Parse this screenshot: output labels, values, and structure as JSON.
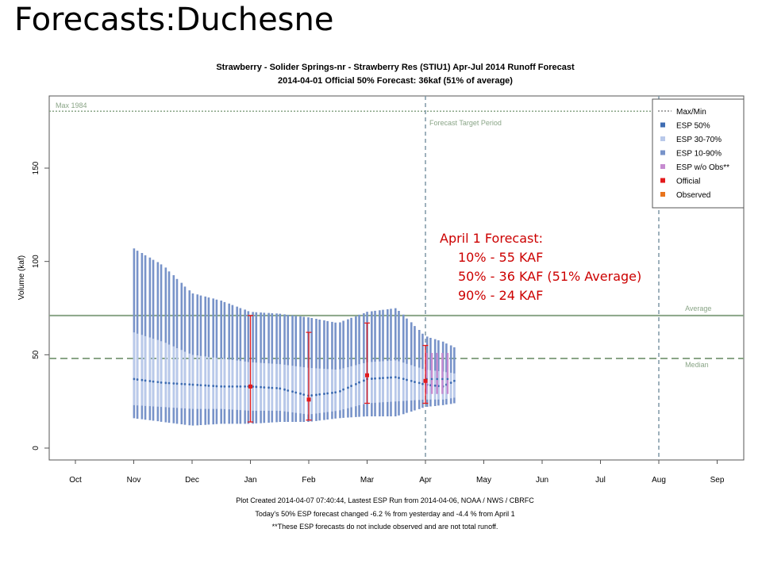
{
  "slide": {
    "title": "Forecasts:Duchesne"
  },
  "colors": {
    "esp50": "#3f6db3",
    "esp30_70": "#b9c9ea",
    "esp10_90": "#7893c9",
    "esp_wo_obs": "#c68bd0",
    "official": "#e31a1c",
    "observed": "#e8741c",
    "guide": "#8aa587",
    "target": "#7f97a5"
  },
  "chart_data": {
    "type": "bar",
    "title": "Strawberry - Solider Springs-nr - Strawberry Res (STIU1) Apr-Jul 2014 Runoff Forecast",
    "subtitle": "2014-04-01 Official 50% Forecast: 36kaf (51% of average)",
    "ylabel": "Volume (kaf)",
    "ylim": [
      0,
      190
    ],
    "y_ticks": [
      "0",
      "50",
      "100",
      "150"
    ],
    "x_ticks": [
      "Oct",
      "Nov",
      "Dec",
      "Jan",
      "Feb",
      "Mar",
      "Apr",
      "May",
      "Jun",
      "Jul",
      "Aug",
      "Sep"
    ],
    "legend": {
      "placement": "top-right",
      "items": [
        {
          "label": "Max/Min",
          "style": "dotted"
        },
        {
          "label": "ESP 50%",
          "style": "esp50"
        },
        {
          "label": "ESP 30-70%",
          "style": "esp30_70"
        },
        {
          "label": "ESP 10-90%",
          "style": "esp10_90"
        },
        {
          "label": "ESP w/o Obs**",
          "style": "esp_wo_obs"
        },
        {
          "label": "Official",
          "style": "official"
        },
        {
          "label": "Observed",
          "style": "observed"
        }
      ]
    },
    "reference_lines": [
      {
        "label": "Max 1984",
        "value": 180.5,
        "style": "dotted"
      },
      {
        "label": "Average",
        "value": 71,
        "style": "solid"
      },
      {
        "label": "Median",
        "value": 48,
        "style": "dashed"
      }
    ],
    "forecast_target_period": {
      "label": "Forecast Target Period",
      "start_month": "Apr",
      "end_month": "Aug"
    },
    "esp_anchor_months": [
      1,
      1.5,
      2,
      2.5,
      3,
      3.5,
      4,
      4.5,
      5,
      5.5,
      6,
      6.3,
      6.5
    ],
    "esp_p90_anchors": [
      107,
      98,
      83,
      79,
      73,
      72,
      70,
      67,
      73,
      75,
      60,
      57,
      54
    ],
    "esp_p70_anchors": [
      62,
      57,
      50,
      48,
      46,
      45,
      43,
      42,
      46,
      47,
      42,
      41,
      40
    ],
    "esp_p50_anchors": [
      37,
      35,
      34,
      33,
      33,
      32,
      28,
      30,
      37,
      38,
      34,
      33,
      36
    ],
    "esp_p30_anchors": [
      23,
      22,
      21,
      21,
      20,
      20,
      18,
      20,
      24,
      25,
      26,
      26,
      27
    ],
    "esp_p10_anchors": [
      16,
      14,
      12,
      13,
      13,
      14,
      14,
      16,
      17,
      17,
      22,
      23,
      24
    ],
    "esp_wo_obs": {
      "start_month": 6.02,
      "end_month": 6.38,
      "p90": 51,
      "p50": 37,
      "p10": 29
    },
    "official": [
      {
        "month": 3,
        "p10": 14,
        "p50": 33,
        "p90": 71
      },
      {
        "month": 4,
        "p10": 15,
        "p50": 26,
        "p90": 62
      },
      {
        "month": 5,
        "p10": 24,
        "p50": 39,
        "p90": 67
      },
      {
        "month": 6,
        "p10": 24,
        "p50": 36,
        "p90": 55
      }
    ],
    "footer": [
      "Plot Created 2014-04-07 07:40:44, Lastest ESP Run from 2014-04-06, NOAA / NWS / CBRFC",
      "Today's 50% ESP forecast changed  -6.2 % from yesterday and  -4.4 % from  April 1",
      "**These ESP forecasts do not include observed and are not total runoff."
    ]
  },
  "callout": {
    "heading": "April 1 Forecast:",
    "lines": [
      "10% - 55 KAF",
      "50% - 36 KAF (51% Average)",
      "90% - 24 KAF"
    ]
  }
}
